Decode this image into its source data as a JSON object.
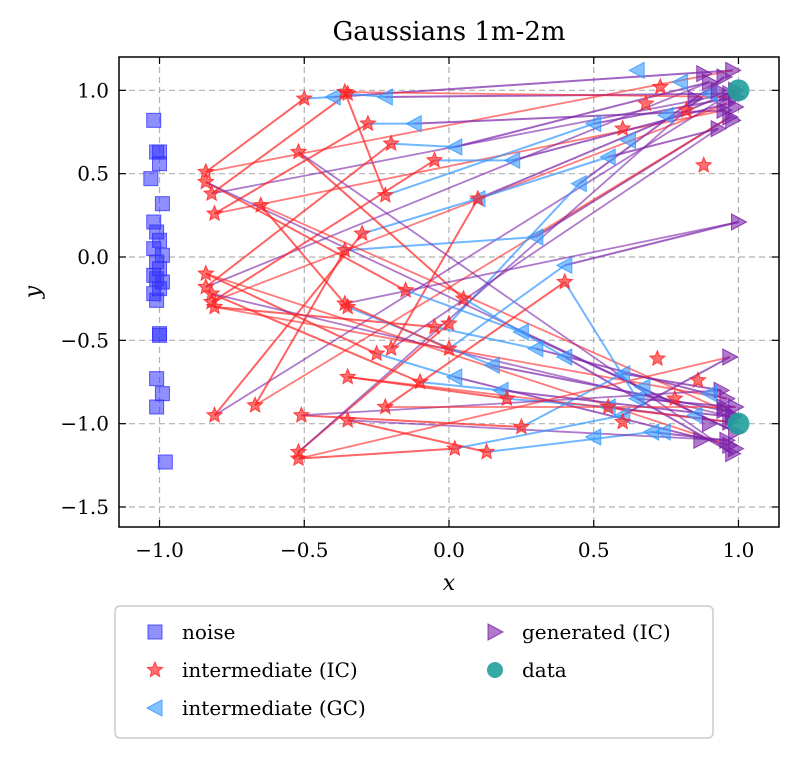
{
  "chart_data": {
    "type": "scatter",
    "title": "Gaussians 1m-2m",
    "xlabel": "x",
    "ylabel": "y",
    "xlim": [
      -1.14,
      1.14
    ],
    "ylim": [
      -1.62,
      1.2
    ],
    "xticks": [
      -1.0,
      -0.5,
      0.0,
      0.5,
      1.0
    ],
    "xtick_labels": [
      "−1.0",
      "−0.5",
      "0.0",
      "0.5",
      "1.0"
    ],
    "yticks": [
      1.0,
      0.5,
      0.0,
      -0.5,
      -1.0,
      -1.5
    ],
    "ytick_labels": [
      "1.0",
      "0.5",
      "0.0",
      "−0.5",
      "−1.0",
      "−1.5"
    ],
    "grid": true,
    "legend": {
      "placement": "below",
      "entries": [
        {
          "label": "noise",
          "marker": "square",
          "color": "#3333ff"
        },
        {
          "label": "intermediate (IC)",
          "marker": "star",
          "color": "#ff4444"
        },
        {
          "label": "intermediate (GC)",
          "marker": "triangle-left",
          "color": "#3399ff"
        },
        {
          "label": "generated (IC)",
          "marker": "triangle-right",
          "color": "#8a2be2"
        },
        {
          "label": "data",
          "marker": "circle",
          "color": "#20a09a"
        }
      ]
    },
    "series": [
      {
        "name": "noise",
        "marker": "square",
        "x": [
          -1.02,
          -1.01,
          -1.0,
          -1.0,
          -1.03,
          -0.99,
          -1.02,
          -1.01,
          -1.0,
          -1.02,
          -0.99,
          -1.01,
          -1.0,
          -1.02,
          -1.01,
          -0.99,
          -1.0,
          -1.02,
          -1.01,
          -1.0,
          -1.0,
          -1.01,
          -0.99,
          -1.01,
          -0.98
        ],
        "y": [
          0.82,
          0.63,
          0.63,
          0.56,
          0.47,
          0.32,
          0.21,
          0.15,
          0.1,
          0.05,
          0.01,
          -0.03,
          -0.07,
          -0.11,
          -0.13,
          -0.15,
          -0.19,
          -0.22,
          -0.26,
          -0.46,
          -0.47,
          -0.73,
          -0.82,
          -0.9,
          -1.23
        ]
      },
      {
        "name": "data",
        "marker": "circle",
        "x": [
          1.0,
          1.0
        ],
        "y": [
          1.0,
          -1.0
        ]
      }
    ],
    "trajectories": [
      {
        "noise": [
          -0.84,
          0.51
        ],
        "ic": [
          -0.5,
          0.95
        ],
        "gc": [
          -0.4,
          0.96
        ],
        "gen": [
          0.98,
          1.12
        ]
      },
      {
        "noise": [
          -0.82,
          0.38
        ],
        "ic": [
          -0.35,
          0.98
        ],
        "gc": [
          -0.22,
          0.96
        ],
        "gen": [
          0.97,
          0.98
        ]
      },
      {
        "noise": [
          -0.81,
          0.26
        ],
        "ic": [
          -0.28,
          0.8
        ],
        "gc": [
          -0.12,
          0.8
        ],
        "gen": [
          0.95,
          0.88
        ]
      },
      {
        "noise": [
          -0.84,
          -0.18
        ],
        "ic": [
          -0.2,
          0.68
        ],
        "gc": [
          0.02,
          0.66
        ],
        "gen": [
          0.9,
          1.05
        ]
      },
      {
        "noise": [
          -0.82,
          -0.27
        ],
        "ic": [
          -0.05,
          0.58
        ],
        "gc": [
          0.22,
          0.58
        ],
        "gen": [
          0.96,
          0.92
        ]
      },
      {
        "noise": [
          -0.81,
          -0.95
        ],
        "ic": [
          -0.3,
          0.14
        ],
        "gc": [
          0.1,
          0.35
        ],
        "gen": [
          0.99,
          1.0
        ]
      },
      {
        "noise": [
          -0.67,
          -0.89
        ],
        "ic": [
          -0.36,
          0.04
        ],
        "gc": [
          0.3,
          0.12
        ],
        "gen": [
          0.97,
          0.84
        ]
      },
      {
        "noise": [
          -0.52,
          -1.17
        ],
        "ic": [
          0.0,
          -0.4
        ],
        "gc": [
          0.45,
          0.44
        ],
        "gen": [
          0.95,
          1.08
        ]
      },
      {
        "noise": [
          -0.36,
          0.99
        ],
        "ic": [
          -0.22,
          0.37
        ],
        "gc": [
          0.5,
          0.8
        ],
        "gen": [
          0.99,
          0.96
        ]
      },
      {
        "noise": [
          -0.2,
          -0.55
        ],
        "ic": [
          0.1,
          0.35
        ],
        "gc": [
          0.55,
          0.6
        ],
        "gen": [
          0.93,
          0.77
        ]
      },
      {
        "noise": [
          -0.84,
          -0.1
        ],
        "ic": [
          -0.25,
          -0.58
        ],
        "gc": [
          0.02,
          -0.72
        ],
        "gen": [
          0.97,
          -1.13
        ]
      },
      {
        "noise": [
          -0.82,
          -0.22
        ],
        "ic": [
          -0.1,
          -0.75
        ],
        "gc": [
          0.18,
          -0.8
        ],
        "gen": [
          0.98,
          -0.96
        ]
      },
      {
        "noise": [
          -0.81,
          -0.3
        ],
        "ic": [
          -0.05,
          -0.42
        ],
        "gc": [
          0.3,
          -0.55
        ],
        "gen": [
          0.96,
          -0.85
        ]
      },
      {
        "noise": [
          -0.84,
          0.45
        ],
        "ic": [
          -0.15,
          -0.2
        ],
        "gc": [
          0.25,
          -0.45
        ],
        "gen": [
          0.99,
          -1.05
        ]
      },
      {
        "noise": [
          -0.65,
          0.31
        ],
        "ic": [
          -0.35,
          -0.3
        ],
        "gc": [
          0.15,
          -0.65
        ],
        "gen": [
          0.95,
          -0.92
        ]
      },
      {
        "noise": [
          -0.52,
          0.63
        ],
        "ic": [
          0.05,
          -0.25
        ],
        "gc": [
          0.4,
          -0.6
        ],
        "gen": [
          0.98,
          -1.18
        ]
      },
      {
        "noise": [
          -0.35,
          -0.72
        ],
        "ic": [
          0.2,
          -0.85
        ],
        "gc": [
          0.55,
          -0.9
        ],
        "gen": [
          0.97,
          -0.99
        ]
      },
      {
        "noise": [
          -0.51,
          -0.95
        ],
        "ic": [
          0.25,
          -1.02
        ],
        "gc": [
          0.6,
          -0.7
        ],
        "gen": [
          0.94,
          -0.8
        ]
      },
      {
        "noise": [
          -0.22,
          -0.9
        ],
        "ic": [
          0.4,
          -0.15
        ],
        "gc": [
          0.65,
          -0.85
        ],
        "gen": [
          0.99,
          -0.9
        ]
      },
      {
        "noise": [
          -0.35,
          -0.98
        ],
        "ic": [
          0.13,
          -1.17
        ],
        "gc": [
          0.7,
          -1.05
        ],
        "gen": [
          0.96,
          -1.1
        ]
      },
      {
        "noise": [
          -0.52,
          -1.21
        ],
        "ic": [
          0.02,
          -1.15
        ],
        "gc": [
          0.6,
          -0.95
        ],
        "gen": [
          0.97,
          -0.6
        ]
      },
      {
        "noise": [
          -0.36,
          -0.28
        ],
        "ic": [
          0.0,
          -0.55
        ],
        "gc": [
          0.4,
          -0.05
        ],
        "gen": [
          1.0,
          0.21
        ]
      }
    ],
    "extra_markers": {
      "ic": [
        [
          0.73,
          1.02
        ],
        [
          0.82,
          0.88
        ],
        [
          0.6,
          0.77
        ],
        [
          0.88,
          0.55
        ],
        [
          0.68,
          0.92
        ],
        [
          0.78,
          -0.85
        ],
        [
          0.6,
          -0.99
        ],
        [
          0.86,
          -0.74
        ],
        [
          0.72,
          -0.61
        ],
        [
          0.55,
          -0.9
        ]
      ],
      "gc": [
        [
          0.65,
          1.12
        ],
        [
          0.8,
          1.05
        ],
        [
          0.9,
          0.98
        ],
        [
          0.75,
          0.85
        ],
        [
          0.62,
          0.7
        ],
        [
          0.85,
          -0.95
        ],
        [
          0.74,
          -1.05
        ],
        [
          0.9,
          -0.82
        ],
        [
          0.67,
          -0.78
        ],
        [
          0.5,
          -1.08
        ]
      ],
      "gen": [
        [
          0.88,
          1.1
        ],
        [
          0.93,
          1.0
        ],
        [
          0.99,
          0.9
        ],
        [
          0.85,
          0.95
        ],
        [
          0.98,
          0.82
        ],
        [
          0.9,
          -1.0
        ],
        [
          0.95,
          -0.9
        ],
        [
          0.99,
          -1.15
        ],
        [
          0.87,
          -1.1
        ],
        [
          0.98,
          -0.95
        ]
      ]
    }
  },
  "colors": {
    "noise": "#3333ff",
    "ic": "#ff2222",
    "gc": "#3399ff",
    "gen": "#7a22a8",
    "data": "#20a09a",
    "grid": "#b0b0b0"
  }
}
